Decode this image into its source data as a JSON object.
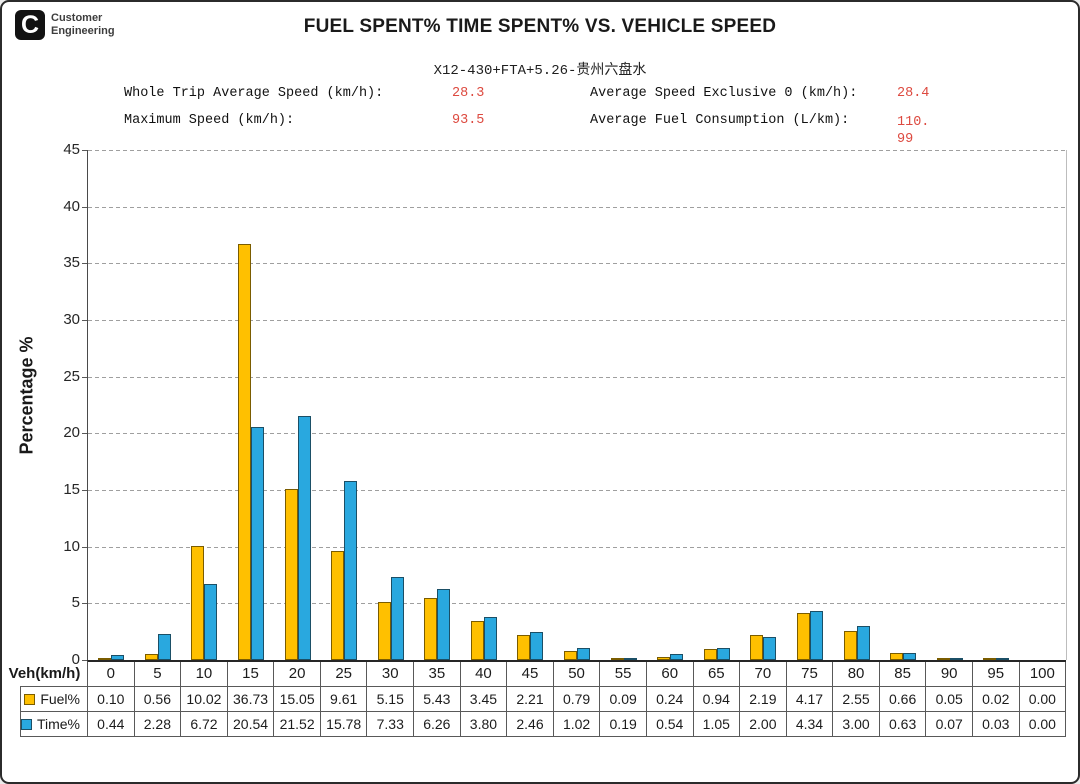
{
  "header": {
    "logo": {
      "mark": "C",
      "brand": "Customer Engineering"
    },
    "title": "FUEL SPENT% TIME SPENT% VS. VEHICLE SPEED",
    "subtitle": "X12-430+FTA+5.26-贵州六盘水",
    "stats": [
      {
        "label": "Whole Trip Average Speed (km/h):",
        "value": "28.3"
      },
      {
        "label": "Average Speed Exclusive 0 (km/h):",
        "value": "28.4"
      },
      {
        "label": "Maximum Speed (km/h):",
        "value": "93.5"
      },
      {
        "label": "Average Fuel Consumption (L/km):",
        "value": "110.99"
      }
    ],
    "value_color": "#dd4a40"
  },
  "chart_data": {
    "type": "bar",
    "title": "FUEL SPENT% TIME SPENT% VS. VEHICLE SPEED",
    "subtitle": "X12-430+FTA+5.26-贵州六盘水",
    "xlabel": "Veh(km/h)",
    "ylabel": "Percentage %",
    "ylim": [
      0,
      45
    ],
    "yticks": [
      0,
      5,
      10,
      15,
      20,
      25,
      30,
      35,
      40,
      45
    ],
    "grid": true,
    "legend_position": "table-left",
    "categories": [
      0,
      5,
      10,
      15,
      20,
      25,
      30,
      35,
      40,
      45,
      50,
      55,
      60,
      65,
      70,
      75,
      80,
      85,
      90,
      95,
      100
    ],
    "series": [
      {
        "name": "Fuel%",
        "color": "#FFC000",
        "border": "#7a5c00",
        "values": [
          0.1,
          0.56,
          10.02,
          36.73,
          15.05,
          9.61,
          5.15,
          5.43,
          3.45,
          2.21,
          0.79,
          0.09,
          0.24,
          0.94,
          2.19,
          4.17,
          2.55,
          0.66,
          0.05,
          0.02,
          0.0
        ]
      },
      {
        "name": "Time%",
        "color": "#29A8DF",
        "border": "#1b4f66",
        "values": [
          0.44,
          2.28,
          6.72,
          20.54,
          21.52,
          15.78,
          7.33,
          6.26,
          3.8,
          2.46,
          1.02,
          0.19,
          0.54,
          1.05,
          2.0,
          4.34,
          3.0,
          0.63,
          0.07,
          0.03,
          0.0
        ]
      }
    ]
  }
}
